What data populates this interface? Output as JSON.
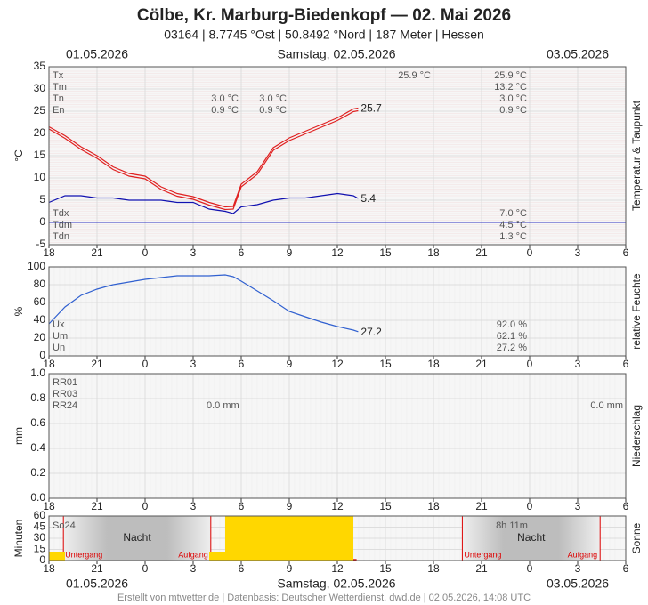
{
  "header": {
    "title": "Cölbe, Kr. Marburg-Biedenkopf  —  02. Mai 2026",
    "subtitle": "03164  |  8.7745 °Ost  |  50.8492 °Nord  |  187 Meter  |  Hessen",
    "date_left": "01.05.2026",
    "date_center": "Samstag, 02.05.2026",
    "date_right": "03.05.2026"
  },
  "footer": "Erstellt von mtwetter.de | Datenbasis: Deutscher Wetterdienst, dwd.de | 02.05.2026, 14:08 UTC",
  "chart_data": [
    {
      "type": "line",
      "ylabel": "°C",
      "side_label": "Temperatur & Taupunkt",
      "ylim": [
        -5,
        35
      ],
      "yticks": [
        -5,
        0,
        5,
        10,
        15,
        20,
        25,
        30,
        35
      ],
      "xlim": [
        0,
        36
      ],
      "xticks": [
        {
          "value": 0,
          "label": "18"
        },
        {
          "value": 3,
          "label": "21"
        },
        {
          "value": 6,
          "label": "0"
        },
        {
          "value": 9,
          "label": "3"
        },
        {
          "value": 12,
          "label": "6"
        },
        {
          "value": 15,
          "label": "9"
        },
        {
          "value": 18,
          "label": "12"
        },
        {
          "value": 21,
          "label": "15"
        },
        {
          "value": 24,
          "label": "18"
        },
        {
          "value": 27,
          "label": "21"
        },
        {
          "value": 30,
          "label": "0"
        },
        {
          "value": 33,
          "label": "3"
        },
        {
          "value": 36,
          "label": "6"
        }
      ],
      "x": [
        0,
        1,
        2,
        3,
        4,
        5,
        6,
        7,
        8,
        9,
        10,
        11,
        11.5,
        12,
        13,
        14,
        15,
        16,
        17,
        18,
        19,
        19.3
      ],
      "series": [
        {
          "color": "#e02020",
          "values": [
            21.5,
            19.5,
            17,
            15,
            12.5,
            11,
            10.4,
            8,
            6.5,
            5.8,
            4.5,
            3.5,
            3.6,
            8.6,
            11.4,
            16.8,
            19,
            20.5,
            22,
            23.5,
            25.5,
            25.7
          ]
        },
        {
          "color": "#e02020",
          "values": [
            21,
            18.9,
            16.4,
            14.4,
            11.9,
            10.4,
            9.8,
            7.4,
            5.9,
            5.2,
            3.9,
            2.9,
            3,
            8,
            10.8,
            16.2,
            18.4,
            19.9,
            21.4,
            22.9,
            24.9,
            25.1
          ]
        },
        {
          "color": "#1010b0",
          "values": [
            4.5,
            6,
            6,
            5.5,
            5.5,
            5,
            5,
            5,
            4.5,
            4.5,
            3,
            2.5,
            2,
            3.5,
            4,
            5,
            5.5,
            5.5,
            6,
            6.5,
            6,
            5.4
          ]
        }
      ],
      "end_labels": [
        0,
        2
      ],
      "stats_top": [
        {
          "label": "Tx",
          "right": "25.9 °C",
          "mid": [
            "25.9 °C"
          ]
        },
        {
          "label": "Tm",
          "right": "13.2 °C",
          "mid": []
        },
        {
          "label": "Tn",
          "right": "3.0 °C",
          "mid": [
            "3.0 °C",
            "3.0 °C"
          ]
        },
        {
          "label": "En",
          "right": "0.9 °C",
          "mid": [
            "0.9 °C",
            "0.9 °C"
          ]
        }
      ],
      "stats_bottom": [
        {
          "label": "Tdx",
          "right": "7.0 °C"
        },
        {
          "label": "Tdm",
          "right": "4.5 °C"
        },
        {
          "label": "Tdn",
          "right": "1.3 °C"
        }
      ]
    },
    {
      "type": "line",
      "ylabel": "%",
      "side_label": "relative Feuchte",
      "ylim": [
        0,
        100
      ],
      "yticks": [
        0,
        20,
        40,
        60,
        80,
        100
      ],
      "xlim": [
        0,
        36
      ],
      "xticks": [
        {
          "value": 0,
          "label": "18"
        },
        {
          "value": 3,
          "label": "21"
        },
        {
          "value": 6,
          "label": "0"
        },
        {
          "value": 9,
          "label": "3"
        },
        {
          "value": 12,
          "label": "6"
        },
        {
          "value": 15,
          "label": "9"
        },
        {
          "value": 18,
          "label": "12"
        },
        {
          "value": 21,
          "label": "15"
        },
        {
          "value": 24,
          "label": "18"
        },
        {
          "value": 27,
          "label": "21"
        },
        {
          "value": 30,
          "label": "0"
        },
        {
          "value": 33,
          "label": "3"
        },
        {
          "value": 36,
          "label": "6"
        }
      ],
      "x": [
        0,
        1,
        2,
        3,
        4,
        5,
        6,
        7,
        8,
        9,
        10,
        11,
        11.5,
        12,
        13,
        14,
        15,
        16,
        17,
        18,
        19,
        19.3
      ],
      "series": [
        {
          "color": "#3060d0",
          "values": [
            36,
            55,
            68,
            75,
            80,
            83,
            86,
            88,
            90,
            90,
            90,
            91,
            89,
            84,
            73,
            62,
            50,
            44,
            38,
            33,
            29,
            27.2
          ]
        }
      ],
      "end_labels": [
        0
      ],
      "stats_bottom": [
        {
          "label": "Ux",
          "right": "92.0 %"
        },
        {
          "label": "Um",
          "right": "62.1 %"
        },
        {
          "label": "Un",
          "right": "27.2 %"
        }
      ]
    },
    {
      "type": "precip",
      "ylabel": "mm",
      "side_label": "Niederschlag",
      "ylim": [
        0,
        1
      ],
      "yticks": [
        {
          "value": 0,
          "label": "0.0"
        },
        {
          "value": 0.2,
          "label": "0.2"
        },
        {
          "value": 0.4,
          "label": "0.4"
        },
        {
          "value": 0.6,
          "label": "0.6"
        },
        {
          "value": 0.8,
          "label": "0.8"
        },
        {
          "value": 1,
          "label": "1.0"
        }
      ],
      "xlim": [
        0,
        36
      ],
      "xticks": [
        {
          "value": 0,
          "label": "18"
        },
        {
          "value": 3,
          "label": "21"
        },
        {
          "value": 6,
          "label": "0"
        },
        {
          "value": 9,
          "label": "3"
        },
        {
          "value": 12,
          "label": "6"
        },
        {
          "value": 15,
          "label": "9"
        },
        {
          "value": 18,
          "label": "12"
        },
        {
          "value": 21,
          "label": "15"
        },
        {
          "value": 24,
          "label": "18"
        },
        {
          "value": 27,
          "label": "21"
        },
        {
          "value": 30,
          "label": "0"
        },
        {
          "value": 33,
          "label": "3"
        },
        {
          "value": 36,
          "label": "6"
        }
      ],
      "stats_top": [
        {
          "label": "RR01",
          "mid": []
        },
        {
          "label": "RR03",
          "mid": []
        },
        {
          "label": "RR24",
          "mid": [
            "0.0 mm",
            "0.0 mm"
          ]
        }
      ]
    },
    {
      "type": "bar",
      "ylabel": "Minuten",
      "side_label": "Sonne",
      "ylim": [
        0,
        60
      ],
      "yticks": [
        0,
        15,
        30,
        45,
        60
      ],
      "xlim": [
        0,
        36
      ],
      "xticks": [
        {
          "value": 0,
          "label": "18"
        },
        {
          "value": 3,
          "label": "21"
        },
        {
          "value": 6,
          "label": "0"
        },
        {
          "value": 9,
          "label": "3"
        },
        {
          "value": 12,
          "label": "6"
        },
        {
          "value": 15,
          "label": "9"
        },
        {
          "value": 18,
          "label": "12"
        },
        {
          "value": 21,
          "label": "15"
        },
        {
          "value": 24,
          "label": "18"
        },
        {
          "value": 27,
          "label": "21"
        },
        {
          "value": 30,
          "label": "0"
        },
        {
          "value": 33,
          "label": "3"
        },
        {
          "value": 36,
          "label": "6"
        }
      ],
      "color": "#ffd700",
      "x": [
        0,
        10,
        11,
        12,
        13,
        14,
        15,
        16,
        17,
        18,
        19
      ],
      "values": [
        12,
        12,
        60,
        60,
        60,
        60,
        60,
        60,
        60,
        60,
        2
      ],
      "nights": [
        [
          0.9,
          10.1
        ],
        [
          25.8,
          34.4
        ]
      ],
      "label_sum": "So24",
      "label_duration": "8h 11m",
      "label_night": "Nacht",
      "label_sunset": "Untergang",
      "label_sunrise": "Aufgang"
    }
  ]
}
